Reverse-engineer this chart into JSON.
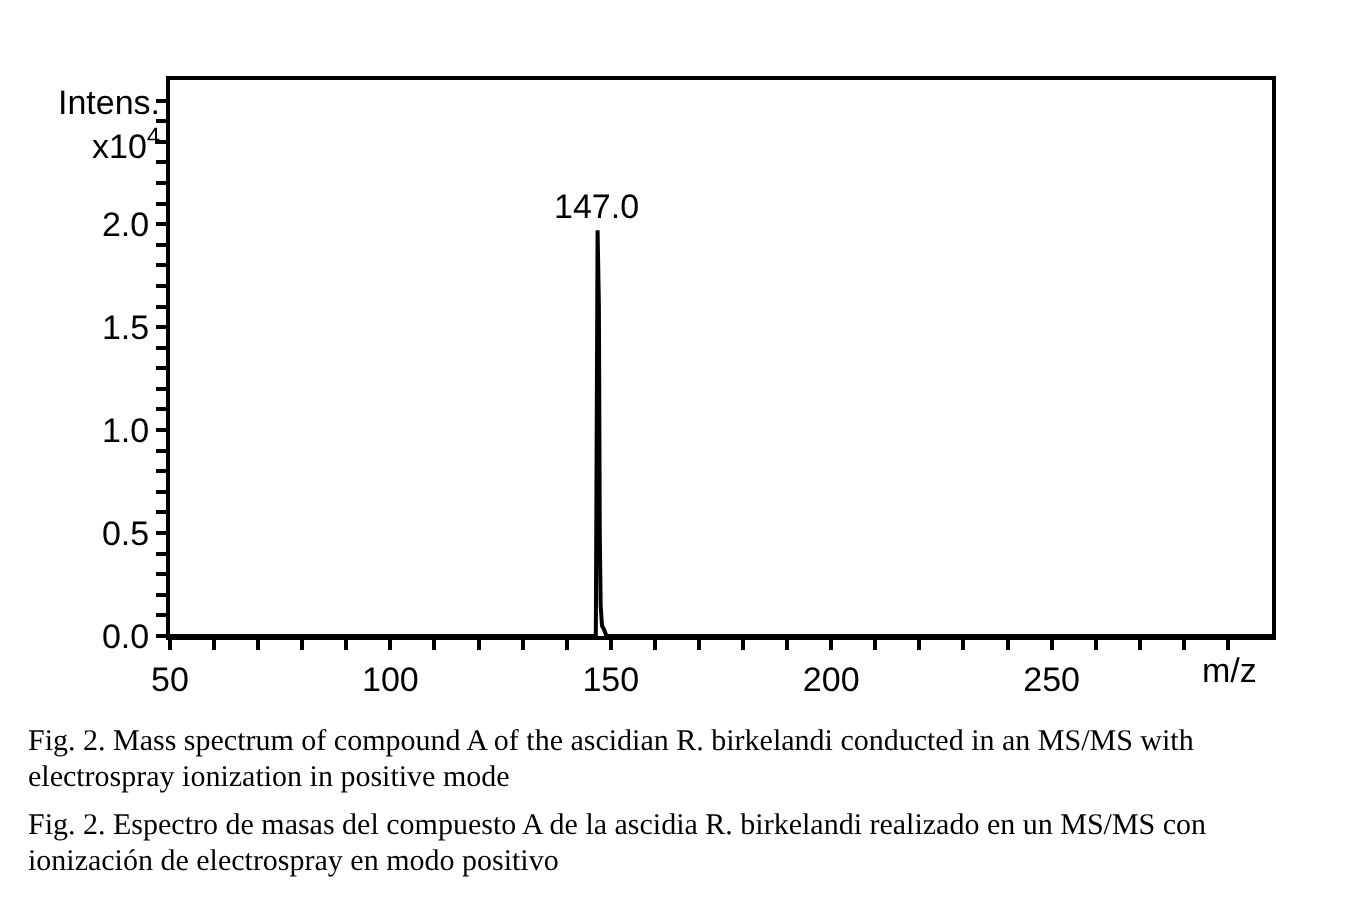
{
  "chart_data": {
    "type": "line",
    "ylabel": "Intens.\nx10$^{4}$",
    "xlabel": "m/z",
    "x": [
      50,
      145.5,
      146.6,
      147.0,
      147.3,
      147.5,
      147.7,
      148.0,
      148.5,
      149,
      300
    ],
    "series": [
      {
        "color": "#000000",
        "values": [
          0,
          0,
          0,
          1.97,
          1.6,
          0.5,
          0.15,
          0.05,
          0.03,
          0,
          0
        ]
      }
    ],
    "xlim": [
      50,
      300
    ],
    "xticks": [
      50,
      {
        "value": 60,
        "label": null
      },
      {
        "value": 70,
        "label": null
      },
      {
        "value": 80,
        "label": null
      },
      {
        "value": 90,
        "label": null
      },
      100,
      {
        "value": 110,
        "label": null
      },
      {
        "value": 120,
        "label": null
      },
      {
        "value": 130,
        "label": null
      },
      {
        "value": 140,
        "label": null
      },
      150,
      {
        "value": 160,
        "label": null
      },
      {
        "value": 170,
        "label": null
      },
      {
        "value": 180,
        "label": null
      },
      {
        "value": 190,
        "label": null
      },
      200,
      {
        "value": 210,
        "label": null
      },
      {
        "value": 220,
        "label": null
      },
      {
        "value": 230,
        "label": null
      },
      {
        "value": 240,
        "label": null
      },
      250,
      {
        "value": 260,
        "label": null
      },
      {
        "value": 270,
        "label": null
      },
      {
        "value": 280,
        "label": null
      },
      {
        "value": 290,
        "label": null
      }
    ],
    "ylim": [
      0,
      2.7
    ],
    "yticks": [
      {
        "value": 0,
        "label": "0.0"
      },
      {
        "value": 0.1,
        "label": null
      },
      {
        "value": 0.2,
        "label": null
      },
      {
        "value": 0.3,
        "label": null
      },
      {
        "value": 0.4,
        "label": null
      },
      0.5,
      {
        "value": 0.6,
        "label": null
      },
      {
        "value": 0.7,
        "label": null
      },
      {
        "value": 0.8,
        "label": null
      },
      {
        "value": 0.9,
        "label": null
      },
      {
        "value": 1,
        "label": "1.0"
      },
      {
        "value": 1.1,
        "label": null
      },
      {
        "value": 1.2,
        "label": null
      },
      {
        "value": 1.3,
        "label": null
      },
      {
        "value": 1.4,
        "label": null
      },
      1.5,
      {
        "value": 1.6,
        "label": null
      },
      {
        "value": 1.7,
        "label": null
      },
      {
        "value": 1.8,
        "label": null
      },
      {
        "value": 1.9,
        "label": null
      },
      {
        "value": 2,
        "label": "2.0"
      },
      {
        "value": 2.1,
        "label": null
      },
      {
        "value": 2.2,
        "label": null
      },
      {
        "value": 2.3,
        "label": null
      },
      {
        "value": 2.4,
        "label": null
      },
      {
        "value": 2.5,
        "label": null
      },
      {
        "value": 2.6,
        "label": null
      }
    ],
    "grid": false,
    "marker": "none",
    "line_style": "solid",
    "annotations": [
      {
        "text": "147.0",
        "x": 147.0,
        "y": 1.97
      },
      "Fig. 2. Mass spectrum of compound A of the ascidian R. birkelandi conducted in an MS/MS with electrospray ionization in positive mode",
      "Fig. 2. Espectro de masas del compuesto A de la ascidia R. birkelandi realizado en un MS/MS con ionización de electrospray en modo positivo"
    ]
  }
}
